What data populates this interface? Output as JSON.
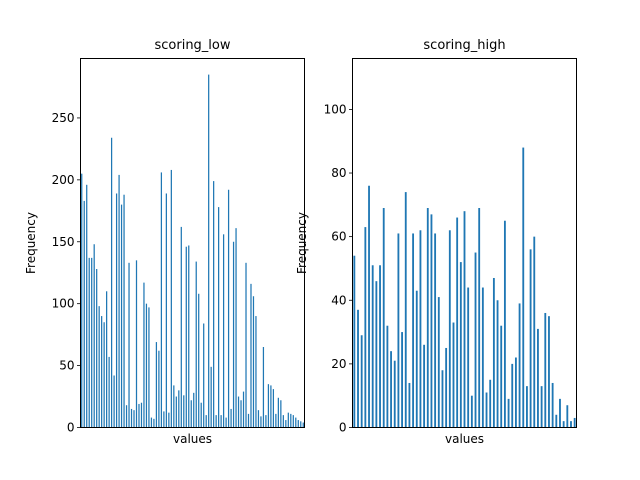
{
  "chart_data": [
    {
      "type": "bar",
      "title": "scoring_low",
      "xlabel": "values",
      "ylabel": "Frequency",
      "ylim": [
        0,
        298
      ],
      "yticks": [
        0,
        50,
        100,
        150,
        200,
        250
      ],
      "xticks": [],
      "bar_color": "#1f77b4",
      "values": [
        205,
        183,
        196,
        137,
        137,
        148,
        128,
        98,
        90,
        85,
        110,
        57,
        234,
        42,
        189,
        204,
        180,
        188,
        18,
        133,
        15,
        14,
        135,
        19,
        20,
        117,
        100,
        97,
        8,
        7,
        69,
        62,
        206,
        13,
        189,
        12,
        208,
        34,
        25,
        30,
        162,
        26,
        146,
        147,
        22,
        28,
        134,
        108,
        20,
        84,
        10,
        285,
        49,
        199,
        10,
        178,
        10,
        156,
        8,
        192,
        15,
        150,
        161,
        25,
        22,
        29,
        133,
        11,
        116,
        106,
        90,
        14,
        9,
        65,
        10,
        35,
        34,
        31,
        11,
        24,
        22,
        10,
        6,
        12,
        11,
        10,
        8,
        6,
        5,
        4
      ]
    },
    {
      "type": "bar",
      "title": "scoring_high",
      "xlabel": "values",
      "ylabel": "Frequency",
      "ylim": [
        0,
        116
      ],
      "yticks": [
        0,
        20,
        40,
        60,
        80,
        100
      ],
      "xticks": [],
      "bar_color": "#1f77b4",
      "values": [
        54,
        37,
        29,
        63,
        76,
        51,
        46,
        51,
        69,
        32,
        24,
        21,
        61,
        30,
        74,
        14,
        61,
        43,
        62,
        26,
        69,
        67,
        61,
        41,
        18,
        25,
        62,
        33,
        66,
        52,
        68,
        44,
        10,
        55,
        69,
        44,
        11,
        15,
        47,
        40,
        32,
        65,
        9,
        20,
        22,
        39,
        88,
        13,
        56,
        60,
        31,
        13,
        36,
        35,
        14,
        4,
        9,
        2,
        7,
        2,
        3
      ]
    }
  ]
}
